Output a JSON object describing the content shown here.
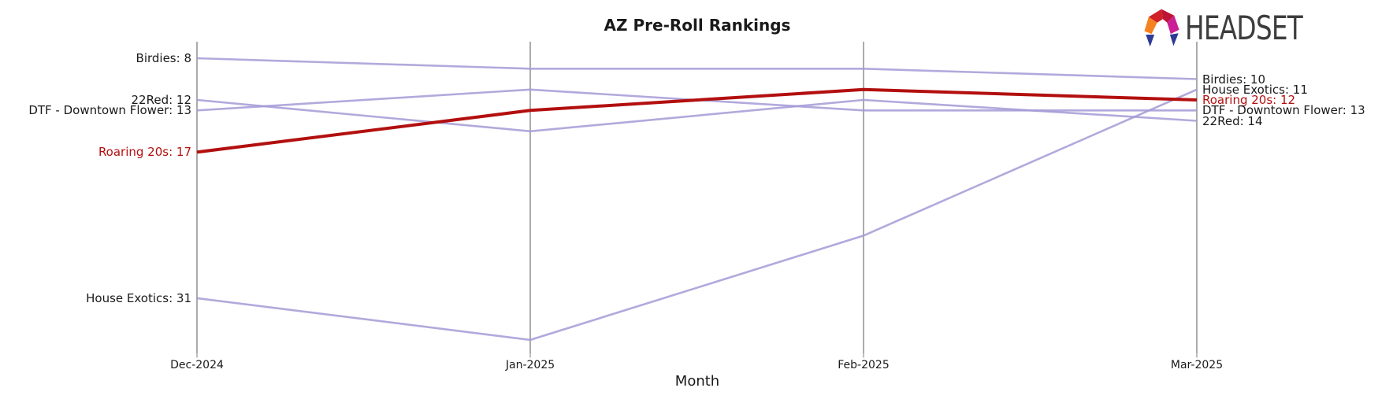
{
  "title": "AZ Pre-Roll Rankings",
  "logo": {
    "text": "HEADSET"
  },
  "colors": {
    "highlight": "#b30f0f",
    "series_line": "#a49ad6",
    "axis": "#ababab",
    "text": "#1a1a1a",
    "logo_text": "#3d3d3d",
    "logo_orange": "#f5821f",
    "logo_red": "#d02028",
    "logo_crimson": "#be1536",
    "logo_magenta": "#cc1f96",
    "logo_blue": "#2f3a96"
  },
  "chart_data": {
    "type": "line",
    "subtype": "bump-ranking-parallel-axes",
    "title": "AZ Pre-Roll Rankings",
    "xlabel": "Month",
    "ylabel": "",
    "x": [
      "Dec-2024",
      "Jan-2025",
      "Feb-2025",
      "Mar-2025"
    ],
    "y_inverted": true,
    "y_range_ranks": [
      6,
      37
    ],
    "grid": "vertical-axes-only",
    "legend_position": "inline-labels-left-and-right",
    "series": [
      {
        "name": "Birdies",
        "values": [
          8,
          9,
          9,
          10
        ],
        "highlight": false
      },
      {
        "name": "22Red",
        "values": [
          12,
          15,
          12,
          14
        ],
        "highlight": false
      },
      {
        "name": "DTF - Downtown Flower",
        "values": [
          13,
          11,
          13,
          13
        ],
        "highlight": false
      },
      {
        "name": "Roaring 20s",
        "values": [
          17,
          13,
          11,
          12
        ],
        "highlight": true
      },
      {
        "name": "House Exotics",
        "values": [
          31,
          35,
          25,
          11
        ],
        "highlight": false
      }
    ],
    "left_labels": [
      {
        "text": "Birdies: 8",
        "rank": 8,
        "highlight": false
      },
      {
        "text": "22Red: 12",
        "rank": 12,
        "highlight": false
      },
      {
        "text": "DTF - Downtown Flower: 13",
        "rank": 13,
        "highlight": false
      },
      {
        "text": "Roaring 20s: 17",
        "rank": 17,
        "highlight": true
      },
      {
        "text": "House Exotics: 31",
        "rank": 31,
        "highlight": false
      }
    ],
    "right_labels": [
      {
        "text": "Birdies: 10",
        "rank": 10,
        "highlight": false
      },
      {
        "text": "House Exotics: 11",
        "rank": 11,
        "highlight": false
      },
      {
        "text": "Roaring 20s: 12",
        "rank": 12,
        "highlight": true
      },
      {
        "text": "DTF - Downtown Flower: 13",
        "rank": 13,
        "highlight": false
      },
      {
        "text": "22Red: 14",
        "rank": 14,
        "highlight": false
      }
    ]
  }
}
